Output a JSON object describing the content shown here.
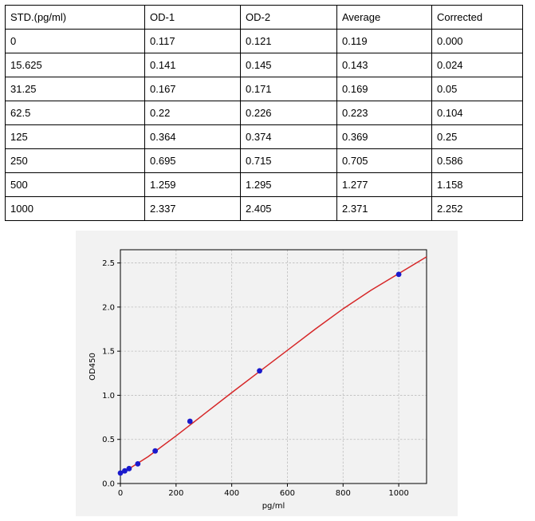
{
  "table": {
    "headers": [
      "STD.(pg/ml)",
      "OD-1",
      "OD-2",
      "Average",
      "Corrected"
    ],
    "rows": [
      [
        "0",
        "0.117",
        "0.121",
        "0.119",
        "0.000"
      ],
      [
        "15.625",
        "0.141",
        "0.145",
        "0.143",
        "0.024"
      ],
      [
        "31.25",
        "0.167",
        "0.171",
        "0.169",
        "0.05"
      ],
      [
        "62.5",
        "0.22",
        "0.226",
        "0.223",
        "0.104"
      ],
      [
        "125",
        "0.364",
        "0.374",
        "0.369",
        "0.25"
      ],
      [
        "250",
        "0.695",
        "0.715",
        "0.705",
        "0.586"
      ],
      [
        "500",
        "1.259",
        "1.295",
        "1.277",
        "1.158"
      ],
      [
        "1000",
        "2.337",
        "2.405",
        "2.371",
        "2.252"
      ]
    ]
  },
  "chart_data": {
    "type": "scatter",
    "xlabel": "pg/ml",
    "ylabel": "OD450",
    "xlim": [
      0,
      1100
    ],
    "ylim": [
      0,
      2.65
    ],
    "xticks": [
      0,
      200,
      400,
      600,
      800,
      1000
    ],
    "yticks": [
      0.0,
      0.5,
      1.0,
      1.5,
      2.0,
      2.5
    ],
    "xtick_labels": [
      "0",
      "200",
      "400",
      "600",
      "800",
      "1000"
    ],
    "ytick_labels": [
      "0.0",
      "0.5",
      "1.0",
      "1.5",
      "2.0",
      "2.5"
    ],
    "grid": true,
    "points": {
      "x": [
        0,
        15.625,
        31.25,
        62.5,
        125,
        250,
        500,
        1000
      ],
      "y": [
        0.119,
        0.143,
        0.169,
        0.223,
        0.369,
        0.705,
        1.277,
        2.371
      ],
      "color": "#1a1acc"
    },
    "fit_curve": {
      "x": [
        0,
        50,
        100,
        200,
        300,
        400,
        500,
        600,
        700,
        800,
        900,
        1000,
        1100
      ],
      "y": [
        0.105,
        0.205,
        0.305,
        0.54,
        0.785,
        1.03,
        1.27,
        1.51,
        1.75,
        1.98,
        2.19,
        2.38,
        2.57
      ],
      "color": "#d62728"
    }
  }
}
